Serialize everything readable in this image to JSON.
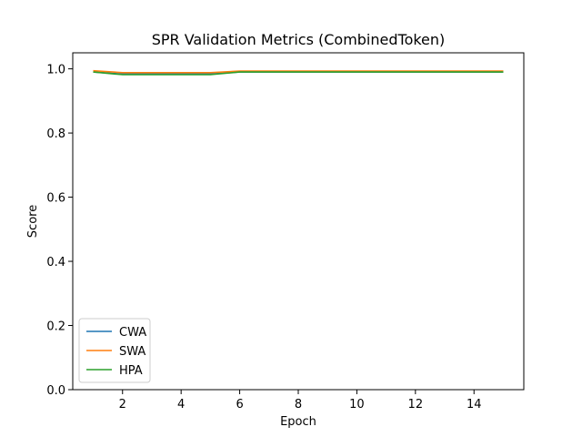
{
  "chart_data": {
    "type": "line",
    "title": "SPR Validation Metrics (CombinedToken)",
    "xlabel": "Epoch",
    "ylabel": "Score",
    "x": [
      1,
      2,
      3,
      4,
      5,
      6,
      7,
      8,
      9,
      10,
      11,
      12,
      13,
      14,
      15
    ],
    "xlim": [
      0.3,
      15.7
    ],
    "ylim": [
      0.0,
      1.05
    ],
    "xticks": [
      2,
      4,
      6,
      8,
      10,
      12,
      14
    ],
    "yticks": [
      0.0,
      0.2,
      0.4,
      0.6,
      0.8,
      1.0
    ],
    "xtick_labels": [
      "2",
      "4",
      "6",
      "8",
      "10",
      "12",
      "14"
    ],
    "ytick_labels": [
      "0.0",
      "0.2",
      "0.4",
      "0.6",
      "0.8",
      "1.0"
    ],
    "grid": false,
    "legend_position": "lower-left",
    "series": [
      {
        "name": "CWA",
        "color": "#1f77b4",
        "values": [
          0.99,
          0.984,
          0.984,
          0.984,
          0.984,
          0.99,
          0.99,
          0.99,
          0.99,
          0.99,
          0.99,
          0.99,
          0.99,
          0.99,
          0.99
        ]
      },
      {
        "name": "SWA",
        "color": "#ff7f0e",
        "values": [
          0.994,
          0.988,
          0.988,
          0.988,
          0.988,
          0.993,
          0.993,
          0.993,
          0.993,
          0.993,
          0.993,
          0.993,
          0.993,
          0.993,
          0.993
        ]
      },
      {
        "name": "HPA",
        "color": "#2ca02c",
        "values": [
          0.99,
          0.982,
          0.982,
          0.982,
          0.982,
          0.99,
          0.99,
          0.99,
          0.99,
          0.99,
          0.99,
          0.99,
          0.99,
          0.99,
          0.99
        ]
      }
    ]
  }
}
